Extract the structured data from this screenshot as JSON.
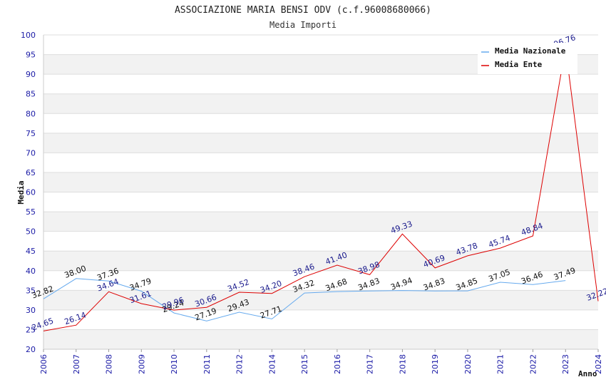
{
  "chart_data": {
    "type": "line",
    "title": "ASSOCIAZIONE MARIA BENSI ODV (c.f.96008680066)",
    "subtitle": "Media Importi",
    "xlabel": "Anno",
    "ylabel": "Media",
    "ylim": [
      20,
      100
    ],
    "yticks": [
      20,
      25,
      30,
      35,
      40,
      45,
      50,
      55,
      60,
      65,
      70,
      75,
      80,
      85,
      90,
      95,
      100
    ],
    "categories": [
      "2006",
      "2007",
      "2008",
      "2009",
      "2010",
      "2011",
      "2012",
      "2014",
      "2015",
      "2016",
      "2017",
      "2018",
      "2019",
      "2020",
      "2021",
      "2022",
      "2023",
      "2024"
    ],
    "legend_position": "top-right",
    "series": [
      {
        "name": "Media Nazionale",
        "color": "#66aaee",
        "label_color": "#111111",
        "values": [
          32.82,
          38.0,
          37.36,
          34.79,
          29.24,
          27.19,
          29.43,
          27.71,
          34.32,
          34.68,
          34.83,
          34.94,
          34.83,
          34.85,
          37.05,
          36.46,
          37.49,
          null
        ],
        "labels": [
          "32.82",
          "38.00",
          "37.36",
          "34.79",
          "29.24",
          "27.19",
          "29.43",
          "27.71",
          "34.32",
          "34.68",
          "34.83",
          "34.94",
          "34.83",
          "34.85",
          "37.05",
          "36.46",
          "37.49",
          null
        ]
      },
      {
        "name": "Media Ente",
        "color": "#dd0000",
        "label_color": "#1a1a8c",
        "values": [
          24.65,
          26.14,
          34.64,
          31.61,
          29.96,
          30.66,
          34.52,
          34.2,
          38.46,
          41.4,
          38.98,
          49.33,
          40.69,
          43.78,
          45.74,
          48.84,
          96.76,
          32.22
        ],
        "labels": [
          "24.65",
          "26.14",
          "34.64",
          "31.61",
          "29.96",
          "30.66",
          "34.52",
          "34.20",
          "38.46",
          "41.40",
          "38.98",
          "49.33",
          "40.69",
          "43.78",
          "45.74",
          "48.84",
          "96.76",
          "32.22"
        ]
      }
    ]
  }
}
